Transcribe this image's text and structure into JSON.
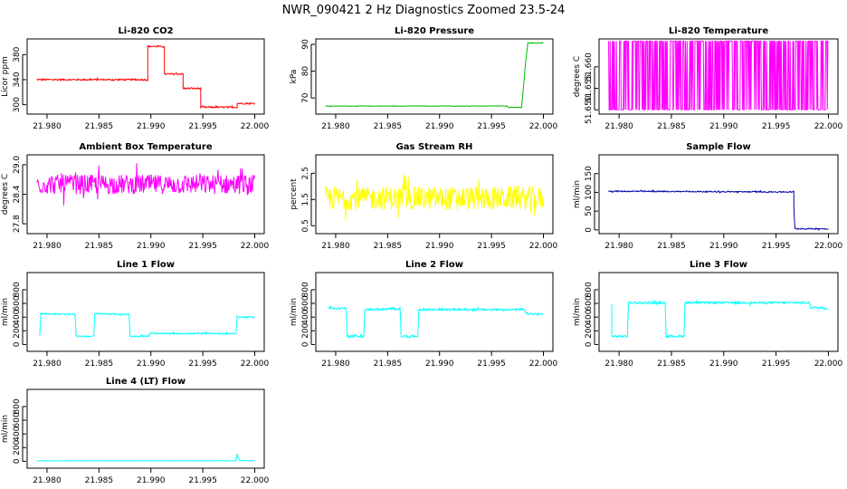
{
  "page": {
    "title": "NWR_090421  2 Hz Diagnostics Zoomed 23.5-24"
  },
  "chart_data": [
    {
      "type": "line",
      "title": "Li-820 CO2",
      "ylabel": "Licor ppm",
      "color": "#ff0000",
      "xlim": [
        21.979,
        22.0
      ],
      "ylim": [
        285,
        405
      ],
      "xticks": [
        21.98,
        21.985,
        21.99,
        21.995,
        22.0
      ],
      "xtick_labels": [
        "21.980",
        "21.985",
        "21.990",
        "21.995",
        "22.000"
      ],
      "yticks": [
        300,
        340,
        380
      ],
      "ytick_labels": [
        "300",
        "340",
        "380"
      ],
      "noise": 1.2,
      "series": [
        {
          "x": [
            21.979,
            21.9897,
            21.9897,
            21.9913,
            21.9913,
            21.9931,
            21.9931,
            21.9948,
            21.9948,
            21.9983,
            21.9983,
            22.0
          ],
          "y": [
            340,
            340,
            393,
            393,
            349,
            349,
            326,
            326,
            296,
            296,
            302,
            302
          ]
        }
      ]
    },
    {
      "type": "line",
      "title": "Li-820 Pressure",
      "ylabel": "kPa",
      "color": "#00bb00",
      "xlim": [
        21.979,
        22.0
      ],
      "ylim": [
        64,
        92
      ],
      "xticks": [
        21.98,
        21.985,
        21.99,
        21.995,
        22.0
      ],
      "xtick_labels": [
        "21.980",
        "21.985",
        "21.990",
        "21.995",
        "22.000"
      ],
      "yticks": [
        70,
        80,
        90
      ],
      "ytick_labels": [
        "70",
        "80",
        "90"
      ],
      "noise": 0.1,
      "series": [
        {
          "x": [
            21.979,
            21.9965,
            21.9966,
            21.9979,
            21.9981,
            21.9983,
            21.9985,
            22.0
          ],
          "y": [
            67,
            67,
            66.5,
            66.5,
            75,
            84,
            90.5,
            90.5
          ]
        }
      ]
    },
    {
      "type": "line",
      "title": "Li-820 Temperature",
      "ylabel": "degrees C",
      "color": "#ff00ff",
      "xlim": [
        21.979,
        22.0
      ],
      "ylim": [
        51.649,
        51.6665
      ],
      "xticks": [
        21.98,
        21.985,
        21.99,
        21.995,
        22.0
      ],
      "xtick_labels": [
        "21.980",
        "21.985",
        "21.990",
        "21.995",
        "22.000"
      ],
      "yticks": [
        51.65,
        51.655,
        51.66
      ],
      "ytick_labels": [
        "51.650",
        "51.655",
        "51.660"
      ],
      "binary": [
        51.65,
        51.666
      ],
      "series": []
    },
    {
      "type": "line",
      "title": "Ambient Box Temperature",
      "ylabel": "degrees C",
      "color": "#ff00ff",
      "xlim": [
        21.979,
        22.0
      ],
      "ylim": [
        27.6,
        29.2
      ],
      "xticks": [
        21.98,
        21.985,
        21.99,
        21.995,
        22.0
      ],
      "xtick_labels": [
        "21.980",
        "21.985",
        "21.990",
        "21.995",
        "22.000"
      ],
      "yticks": [
        27.8,
        28.4,
        29.0
      ],
      "ytick_labels": [
        "27.8",
        "28.4",
        "29.0"
      ],
      "noise": 0.2,
      "series": [
        {
          "x": [
            21.979,
            22.0
          ],
          "y": [
            28.6,
            28.6
          ]
        }
      ]
    },
    {
      "type": "line",
      "title": "Gas Stream RH",
      "ylabel": "percent",
      "color": "#ffff00",
      "xlim": [
        21.979,
        22.0
      ],
      "ylim": [
        0.2,
        3.2
      ],
      "xticks": [
        21.98,
        21.985,
        21.99,
        21.995,
        22.0
      ],
      "xtick_labels": [
        "21.980",
        "21.985",
        "21.990",
        "21.995",
        "22.000"
      ],
      "yticks": [
        0.5,
        1.5,
        2.5
      ],
      "ytick_labels": [
        "0.5",
        "1.5",
        "2.5"
      ],
      "noise": 0.45,
      "series": [
        {
          "x": [
            21.979,
            22.0
          ],
          "y": [
            1.55,
            1.55
          ]
        }
      ]
    },
    {
      "type": "line",
      "title": "Sample Flow",
      "ylabel": "ml/min",
      "color": "#0000aa",
      "xlim": [
        21.979,
        22.0
      ],
      "ylim": [
        -10,
        200
      ],
      "xticks": [
        21.98,
        21.985,
        21.99,
        21.995,
        22.0
      ],
      "xtick_labels": [
        "21.980",
        "21.985",
        "21.990",
        "21.995",
        "22.000"
      ],
      "yticks": [
        0,
        50,
        100,
        150
      ],
      "ytick_labels": [
        "0",
        "50",
        "100",
        "150"
      ],
      "noise": 1.5,
      "series": [
        {
          "x": [
            21.979,
            21.9967,
            21.9967,
            21.9968,
            22.0
          ],
          "y": [
            103,
            101,
            60,
            3,
            3
          ]
        }
      ]
    },
    {
      "type": "line",
      "title": "Line 1 Flow",
      "ylabel": "ml/min",
      "color": "#00ffff",
      "xlim": [
        21.979,
        22.0
      ],
      "ylim": [
        -100,
        1050
      ],
      "xticks": [
        21.98,
        21.985,
        21.99,
        21.995,
        22.0
      ],
      "xtick_labels": [
        "21.980",
        "21.985",
        "21.990",
        "21.995",
        "22.000"
      ],
      "yticks": [
        0,
        200,
        400,
        600,
        800
      ],
      "ytick_labels": [
        "0",
        "200",
        "400",
        "600",
        "800"
      ],
      "noise": 10,
      "series": [
        {
          "x": [
            21.9793,
            21.9794,
            21.9827,
            21.9828,
            21.9845,
            21.9846,
            21.9879,
            21.988,
            21.9898,
            21.9899,
            21.9982,
            21.9983,
            22.0
          ],
          "y": [
            130,
            450,
            440,
            120,
            120,
            450,
            440,
            120,
            120,
            160,
            160,
            400,
            400
          ]
        }
      ]
    },
    {
      "type": "line",
      "title": "Line 2 Flow",
      "ylabel": "ml/min",
      "color": "#00ffff",
      "xlim": [
        21.979,
        22.0
      ],
      "ylim": [
        -100,
        1050
      ],
      "xticks": [
        21.98,
        21.985,
        21.99,
        21.995,
        22.0
      ],
      "xtick_labels": [
        "21.980",
        "21.985",
        "21.990",
        "21.995",
        "22.000"
      ],
      "yticks": [
        0,
        200,
        400,
        600,
        800
      ],
      "ytick_labels": [
        "0",
        "200",
        "400",
        "600",
        "800"
      ],
      "noise": 15,
      "series": [
        {
          "x": [
            21.9793,
            21.981,
            21.9811,
            21.9827,
            21.9828,
            21.9862,
            21.9863,
            21.9879,
            21.988,
            21.9982,
            21.9983,
            22.0
          ],
          "y": [
            530,
            530,
            120,
            120,
            510,
            520,
            120,
            120,
            510,
            510,
            450,
            440
          ]
        }
      ]
    },
    {
      "type": "line",
      "title": "Line 3 Flow",
      "ylabel": "ml/min",
      "color": "#00ffff",
      "xlim": [
        21.979,
        22.0
      ],
      "ylim": [
        -100,
        1050
      ],
      "xticks": [
        21.98,
        21.985,
        21.99,
        21.995,
        22.0
      ],
      "xtick_labels": [
        "21.980",
        "21.985",
        "21.990",
        "21.995",
        "22.000"
      ],
      "yticks": [
        0,
        200,
        400,
        600,
        800
      ],
      "ytick_labels": [
        "0",
        "200",
        "400",
        "600",
        "800"
      ],
      "noise": 15,
      "series": [
        {
          "x": [
            21.9793,
            21.9793,
            21.9808,
            21.9809,
            21.9844,
            21.9845,
            21.9862,
            21.9863,
            21.9982,
            21.9983,
            22.0
          ],
          "y": [
            590,
            120,
            120,
            610,
            610,
            120,
            120,
            610,
            610,
            540,
            530
          ]
        }
      ]
    },
    {
      "type": "line",
      "title": "Line 4 (LT) Flow",
      "ylabel": "ml/min",
      "color": "#00ffff",
      "xlim": [
        21.979,
        22.0
      ],
      "ylim": [
        -100,
        1050
      ],
      "xticks": [
        21.98,
        21.985,
        21.99,
        21.995,
        22.0
      ],
      "xtick_labels": [
        "21.980",
        "21.985",
        "21.990",
        "21.995",
        "22.000"
      ],
      "yticks": [
        0,
        200,
        400,
        600,
        800
      ],
      "ytick_labels": [
        "0",
        "200",
        "400",
        "600",
        "800"
      ],
      "noise": 2,
      "series": [
        {
          "x": [
            21.979,
            21.9982,
            21.9983,
            21.9984,
            21.9986,
            22.0
          ],
          "y": [
            8,
            8,
            110,
            40,
            10,
            8
          ]
        }
      ]
    }
  ]
}
